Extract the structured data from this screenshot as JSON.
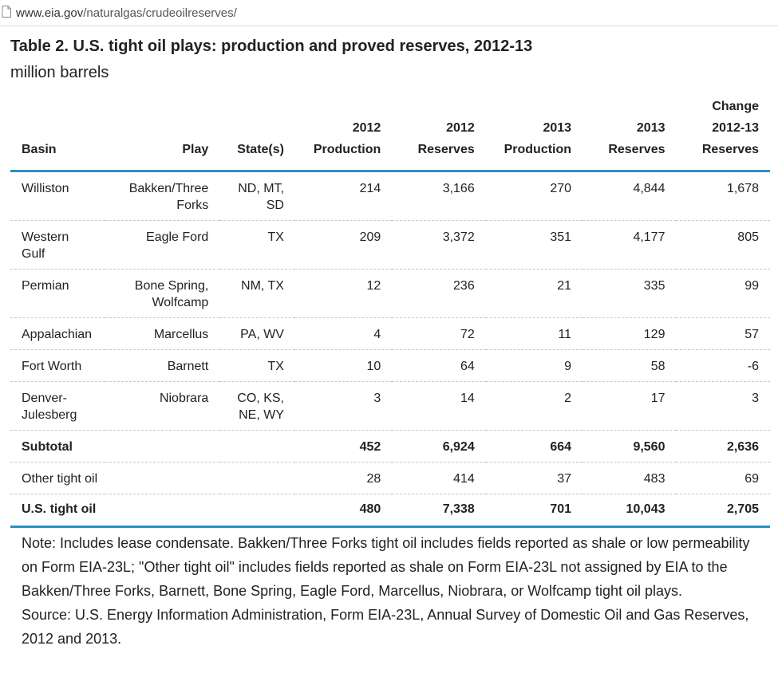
{
  "browser": {
    "url_host": "www.eia.gov",
    "url_path": "/naturalgas/crudeoilreserves/"
  },
  "title": "Table 2. U.S. tight oil plays: production and proved reserves, 2012-13",
  "subtitle": "million barrels",
  "table": {
    "headers": {
      "basin": "Basin",
      "play": "Play",
      "state": "State(s)",
      "prod2012": [
        "2012",
        "Production"
      ],
      "res2012": [
        "2012",
        "Reserves"
      ],
      "prod2013": [
        "2013",
        "Production"
      ],
      "res2013": [
        "2013",
        "Reserves"
      ],
      "change": [
        "Change",
        "2012-13",
        "Reserves"
      ]
    },
    "rows": [
      {
        "basin": [
          "Williston"
        ],
        "play": [
          "Bakken/Three",
          "Forks"
        ],
        "state": [
          "ND, MT,",
          "SD"
        ],
        "prod2012": "214",
        "res2012": "3,166",
        "prod2013": "270",
        "res2013": "4,844",
        "change": "1,678"
      },
      {
        "basin": [
          "Western",
          "Gulf"
        ],
        "play": [
          "Eagle Ford"
        ],
        "state": [
          "TX"
        ],
        "prod2012": "209",
        "res2012": "3,372",
        "prod2013": "351",
        "res2013": "4,177",
        "change": "805"
      },
      {
        "basin": [
          "Permian"
        ],
        "play": [
          "Bone Spring,",
          "Wolfcamp"
        ],
        "state": [
          "NM, TX"
        ],
        "prod2012": "12",
        "res2012": "236",
        "prod2013": "21",
        "res2013": "335",
        "change": "99"
      },
      {
        "basin": [
          "Appalachian"
        ],
        "play": [
          "Marcellus"
        ],
        "state": [
          "PA, WV"
        ],
        "prod2012": "4",
        "res2012": "72",
        "prod2013": "11",
        "res2013": "129",
        "change": "57"
      },
      {
        "basin": [
          "Fort Worth"
        ],
        "play": [
          "Barnett"
        ],
        "state": [
          "TX"
        ],
        "prod2012": "10",
        "res2012": "64",
        "prod2013": "9",
        "res2013": "58",
        "change": "-6"
      },
      {
        "basin": [
          "Denver-",
          "Julesberg"
        ],
        "play": [
          "Niobrara"
        ],
        "state": [
          "CO, KS,",
          "NE, WY"
        ],
        "prod2012": "3",
        "res2012": "14",
        "prod2013": "2",
        "res2013": "17",
        "change": "3"
      }
    ],
    "subtotal": {
      "label": "Subtotal",
      "prod2012": "452",
      "res2012": "6,924",
      "prod2013": "664",
      "res2013": "9,560",
      "change": "2,636"
    },
    "other": {
      "label": "Other tight oil",
      "prod2012": "28",
      "res2012": "414",
      "prod2013": "37",
      "res2013": "483",
      "change": "69"
    },
    "total": {
      "label": "U.S. tight oil",
      "prod2012": "480",
      "res2012": "7,338",
      "prod2013": "701",
      "res2013": "10,043",
      "change": "2,705"
    }
  },
  "note": "Note: Includes lease condensate. Bakken/Three Forks tight oil includes fields reported as shale or low permeability on Form EIA-23L; \"Other tight oil\" includes fields reported as shale on Form EIA-23L not assigned by EIA to the Bakken/Three Forks, Barnett, Bone Spring, Eagle Ford, Marcellus, Niobrara, or Wolfcamp tight oil plays.",
  "source": "Source: U.S. Energy Information Administration, Form EIA-23L, Annual Survey of Domestic Oil and Gas Reserves, 2012 and 2013.",
  "colors": {
    "accent_rule": "#2e8fc0",
    "row_divider": "#c8c8c8",
    "text": "#222222"
  },
  "icons": {
    "url_bar": "page-icon"
  }
}
